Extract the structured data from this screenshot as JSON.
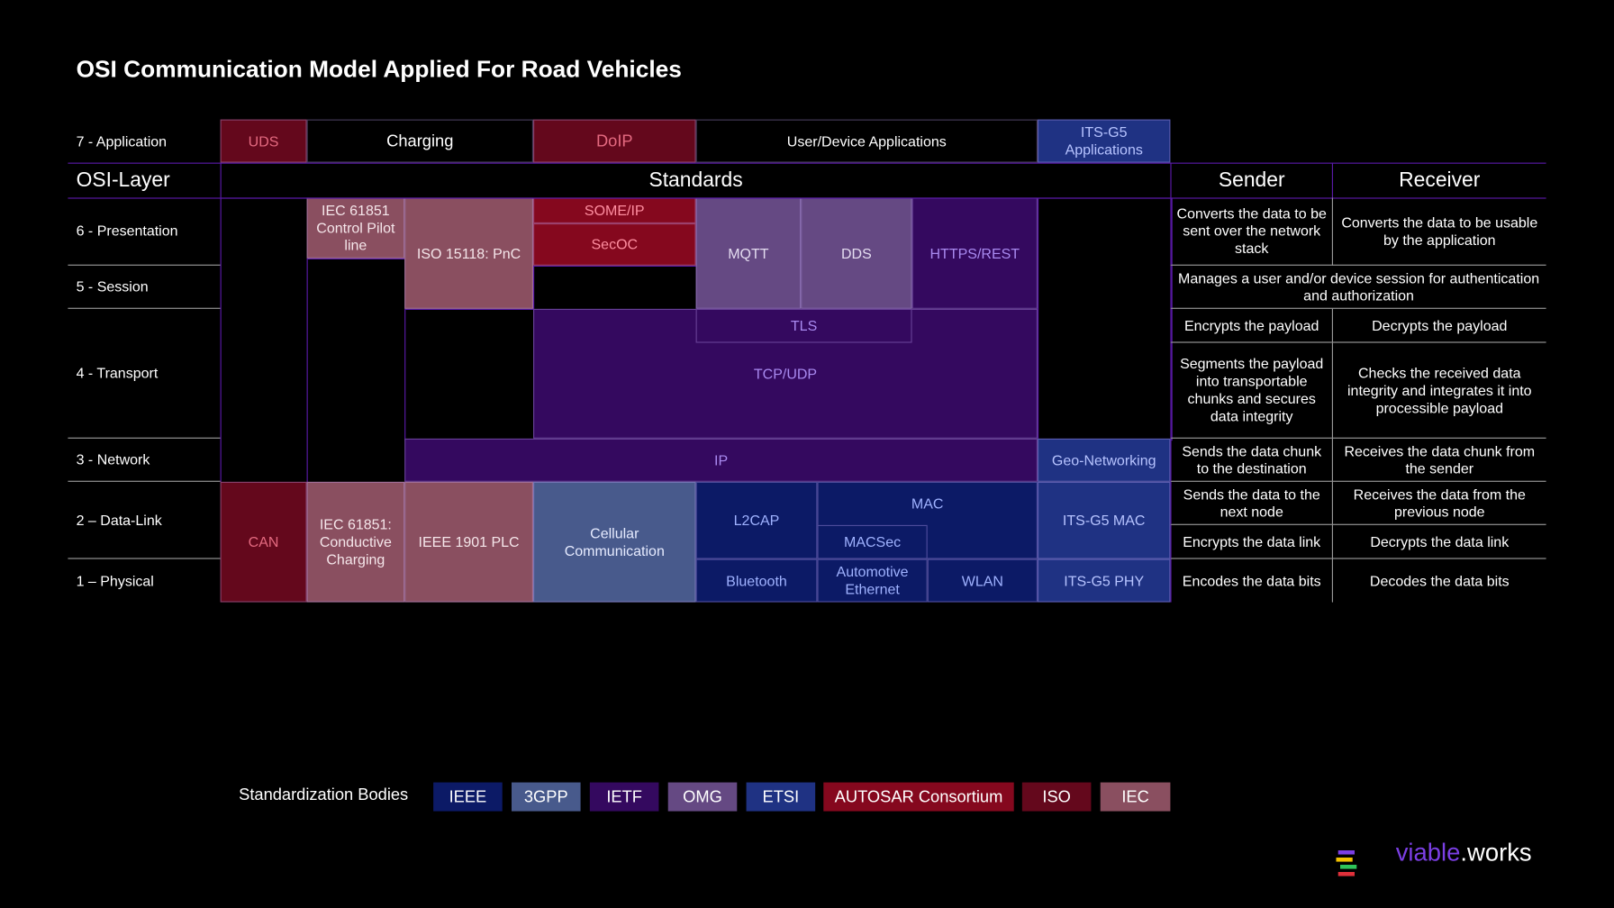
{
  "title": "OSI Communication Model Applied For Road Vehicles",
  "header": {
    "layer": "OSI-Layer",
    "standards": "Standards",
    "sender": "Sender",
    "receiver": "Receiver"
  },
  "layers": [
    "7 - Application",
    "6 - Presentation",
    "5 - Session",
    "4 - Transport",
    "3 - Network",
    "2 – Data-Link",
    "1 – Physical"
  ],
  "standards": [
    "UDS",
    "Charging",
    "DoIP",
    "User/Device Applications",
    "ITS-G5 Applications",
    "IEC 61851 Control Pilot line",
    "ISO 15118: PnC",
    "SOME/IP",
    "SecOC",
    "MQTT",
    "DDS",
    "HTTPS/REST",
    "TCP/UDP",
    "TLS",
    "IP",
    "Geo-Networking",
    "CAN",
    "IEC 61851: Conductive Charging",
    "IEEE 1901 PLC",
    "Cellular Communication",
    "L2CAP",
    "MAC",
    "MACSec",
    "Bluetooth",
    "Automotive Ethernet",
    "WLAN",
    "ITS-G5 MAC",
    "ITS-G5 PHY"
  ],
  "descriptions": [
    "Converts the data to be sent over the network stack",
    "Converts the data to be usable by the application",
    "Manages a user and/or device session for authentication and authorization",
    "Encrypts the payload",
    "Decrypts the payload",
    "Segments the payload into transportable chunks and secures data integrity",
    "Checks the received data integrity and integrates it into processible payload",
    "Sends the data chunk to the destination",
    "Receives the data chunk from the sender",
    "Sends the data to the next node",
    "Receives the data from the previous node",
    "Encrypts the data link",
    "Decrypts the data link",
    "Encodes the data bits",
    "Decodes the data bits"
  ],
  "legend": {
    "title": "Standardization Bodies",
    "bodies": [
      "IEEE",
      "3GPP",
      "IETF",
      "OMG",
      "ETSI",
      "AUTOSAR Consortium",
      "ISO",
      "IEC"
    ]
  },
  "brand": {
    "name": "viable",
    "suffix": ".works"
  }
}
